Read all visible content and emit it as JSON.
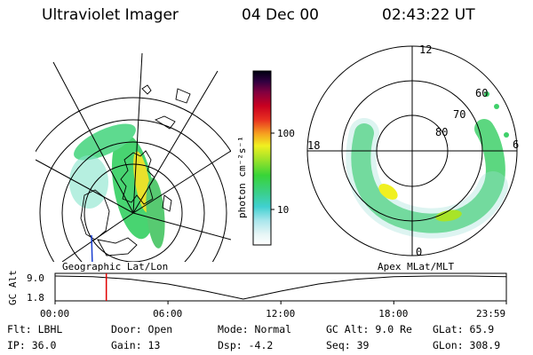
{
  "header": {
    "instrument": "Ultraviolet Imager",
    "date": "04 Dec 00",
    "time": "02:43:22 UT"
  },
  "colorbar": {
    "unit_label": "photon cm⁻²s⁻¹",
    "tick_100": "100",
    "tick_10": "10"
  },
  "polar_plot": {
    "mlt_12": "12",
    "mlt_18": "18",
    "mlt_6": "6",
    "mlt_0": "0",
    "lat_60": "60",
    "lat_70": "70",
    "lat_80": "80"
  },
  "timeline": {
    "left_title": "Geographic Lat/Lon",
    "right_title": "Apex MLat/MLT",
    "y_axis_label": "GC Alt",
    "y_max": "9.0",
    "y_min": "1.8",
    "x_ticks": [
      "00:00",
      "06:00",
      "12:00",
      "18:00",
      "23:59"
    ],
    "marker_time": "02:43:22",
    "altitude_curve": [
      {
        "t": 0.0,
        "alt": 9.0
      },
      {
        "t": 2.0,
        "alt": 8.8
      },
      {
        "t": 4.0,
        "alt": 8.0
      },
      {
        "t": 6.0,
        "alt": 6.5
      },
      {
        "t": 8.0,
        "alt": 4.3
      },
      {
        "t": 10.0,
        "alt": 1.8
      },
      {
        "t": 12.0,
        "alt": 4.3
      },
      {
        "t": 14.0,
        "alt": 6.5
      },
      {
        "t": 16.0,
        "alt": 8.0
      },
      {
        "t": 18.0,
        "alt": 8.8
      },
      {
        "t": 20.0,
        "alt": 9.0
      },
      {
        "t": 22.0,
        "alt": 9.0
      },
      {
        "t": 23.98,
        "alt": 8.8
      }
    ]
  },
  "info": {
    "filter": "Flt: LBHL",
    "ip": "IP: 36.0",
    "door": "Door: Open",
    "gain": "Gain: 13",
    "mode": "Mode: Normal",
    "dsp": "Dsp:   -4.2",
    "gc_alt": "GC Alt: 9.0 Re",
    "seq": "Seq: 39",
    "glat": "GLat:  65.9",
    "glon": "GLon: 308.9"
  }
}
